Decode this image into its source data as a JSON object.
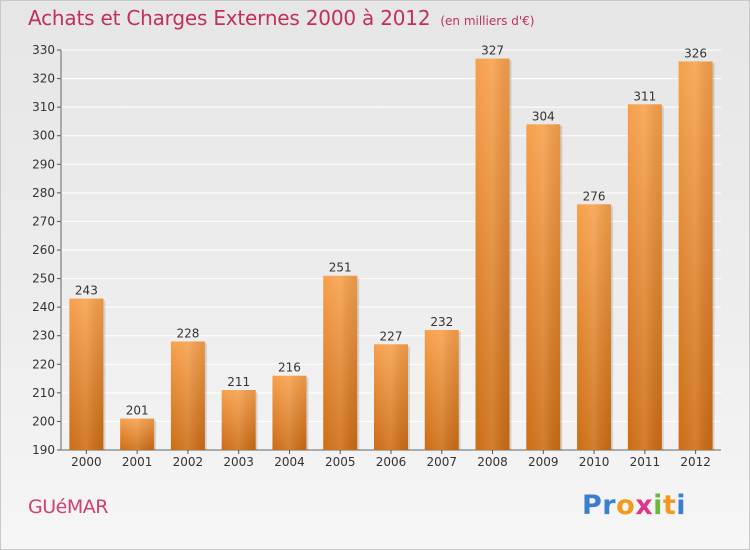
{
  "title": "Achats et Charges Externes 2000 à 2012",
  "unit": "(en milliers d'€)",
  "commune": "GUéMAR",
  "logo": {
    "letters": [
      "P",
      "r",
      "o",
      "x",
      "i",
      "t",
      "i"
    ],
    "colors": [
      "#3a7fd0",
      "#3a7fd0",
      "#f39a1e",
      "#e0368a",
      "#6cb83a",
      "#f39a1e",
      "#3a7fd0"
    ]
  },
  "colors": {
    "bar_top": "#f7a04b",
    "bar_bottom": "#cc6c14",
    "title": "#c0305a",
    "grid": "#ffffff"
  },
  "chart_data": {
    "type": "bar",
    "categories": [
      "2000",
      "2001",
      "2002",
      "2003",
      "2004",
      "2005",
      "2006",
      "2007",
      "2008",
      "2009",
      "2010",
      "2011",
      "2012"
    ],
    "values": [
      243,
      201,
      228,
      211,
      216,
      251,
      227,
      232,
      327,
      304,
      276,
      311,
      326
    ],
    "ylim": [
      190,
      330
    ],
    "yticks": [
      190,
      200,
      210,
      220,
      230,
      240,
      250,
      260,
      270,
      280,
      290,
      300,
      310,
      320,
      330
    ],
    "grid": true,
    "xlabel": "",
    "ylabel": ""
  }
}
